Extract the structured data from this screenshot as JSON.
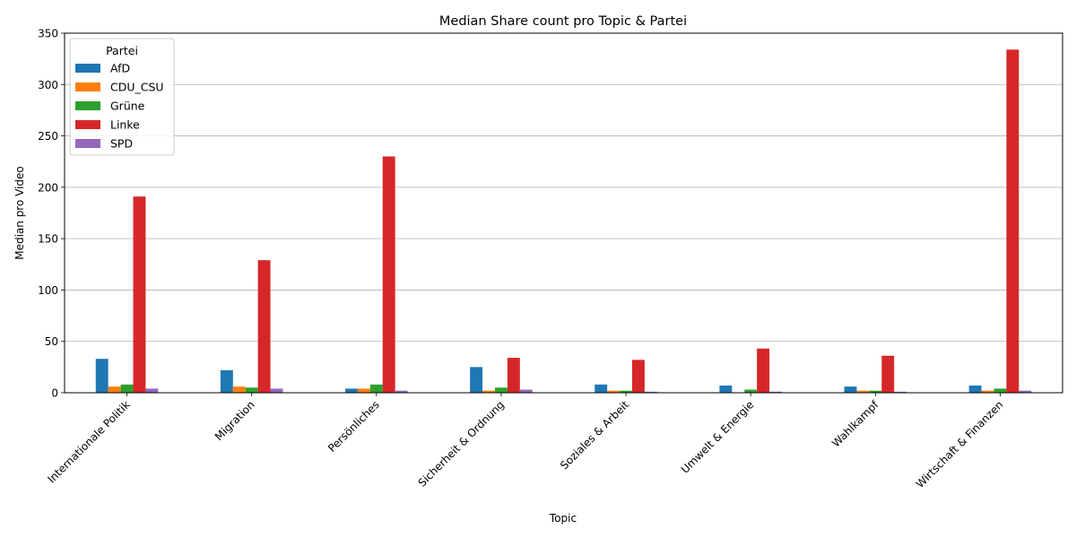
{
  "chart_data": {
    "type": "bar",
    "title": "Median Share count pro Topic & Partei",
    "xlabel": "Topic",
    "ylabel": "Median pro Video",
    "ylim": [
      0,
      350
    ],
    "yticks": [
      0,
      50,
      100,
      150,
      200,
      250,
      300,
      350
    ],
    "grid": "y",
    "legend_title": "Partei",
    "legend_position": "top-left",
    "categories": [
      "Internationale Politik",
      "Migration",
      "Persönliches",
      "Sicherheit & Ordnung",
      "Soziales & Arbeit",
      "Umwelt & Energie",
      "Wahlkampf",
      "Wirtschaft & Finanzen"
    ],
    "series": [
      {
        "name": "AfD",
        "color": "#1f77b4",
        "values": [
          33,
          22,
          4,
          25,
          8,
          7,
          6,
          7
        ]
      },
      {
        "name": "CDU_CSU",
        "color": "#ff7f0e",
        "values": [
          6,
          6,
          4,
          2,
          2,
          0,
          2,
          2
        ]
      },
      {
        "name": "Grüne",
        "color": "#2ca02c",
        "values": [
          8,
          5,
          8,
          5,
          2,
          3,
          2,
          4
        ]
      },
      {
        "name": "Linke",
        "color": "#d62728",
        "values": [
          191,
          129,
          230,
          34,
          32,
          43,
          36,
          334
        ]
      },
      {
        "name": "SPD",
        "color": "#9467bd",
        "values": [
          4,
          4,
          2,
          3,
          1,
          1,
          1,
          2
        ]
      }
    ]
  }
}
